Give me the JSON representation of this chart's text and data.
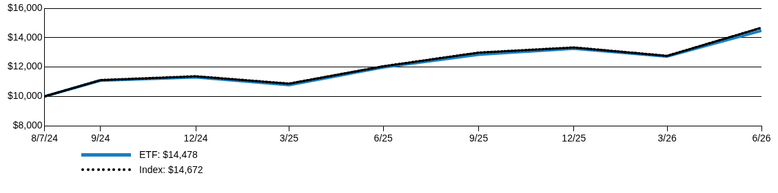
{
  "chart_data": {
    "type": "line",
    "x": [
      "2024-08-07",
      "2024-09-30",
      "2024-12-31",
      "2025-03-31",
      "2025-06-30",
      "2025-09-30",
      "2025-12-31",
      "2026-03-31",
      "2026-06-30"
    ],
    "series": [
      {
        "name": "ETF: $14,478",
        "color": "#1a7fc1",
        "line_style": "solid",
        "values": [
          10000,
          11080,
          11300,
          10780,
          11980,
          12850,
          13250,
          12720,
          14478
        ]
      },
      {
        "name": "Index: $14,672",
        "color": "#000000",
        "line_style": "dotted",
        "values": [
          10000,
          11110,
          11370,
          10870,
          12050,
          12980,
          13330,
          12760,
          14672
        ]
      }
    ],
    "xlim": [
      "2024-08-07",
      "2026-06-30"
    ],
    "xticks": [
      {
        "value": "2024-08-07",
        "label": "8/7/24"
      },
      {
        "value": "2024-09-30",
        "label": "9/24"
      },
      {
        "value": "2024-12-31",
        "label": "12/24"
      },
      {
        "value": "2025-03-31",
        "label": "3/25"
      },
      {
        "value": "2025-06-30",
        "label": "6/25"
      },
      {
        "value": "2025-09-30",
        "label": "9/25"
      },
      {
        "value": "2025-12-31",
        "label": "12/25"
      },
      {
        "value": "2026-03-31",
        "label": "3/26"
      },
      {
        "value": "2026-06-30",
        "label": "6/26"
      }
    ],
    "ylim": [
      8000,
      16000
    ],
    "yticks": [
      {
        "value": 8000,
        "label": "$8,000"
      },
      {
        "value": 10000,
        "label": "$10,000"
      },
      {
        "value": 12000,
        "label": "$12,000"
      },
      {
        "value": 14000,
        "label": "$14,000"
      },
      {
        "value": 16000,
        "label": "$16,000"
      }
    ],
    "grid": "y",
    "legend": "bottom",
    "marker": "none"
  }
}
